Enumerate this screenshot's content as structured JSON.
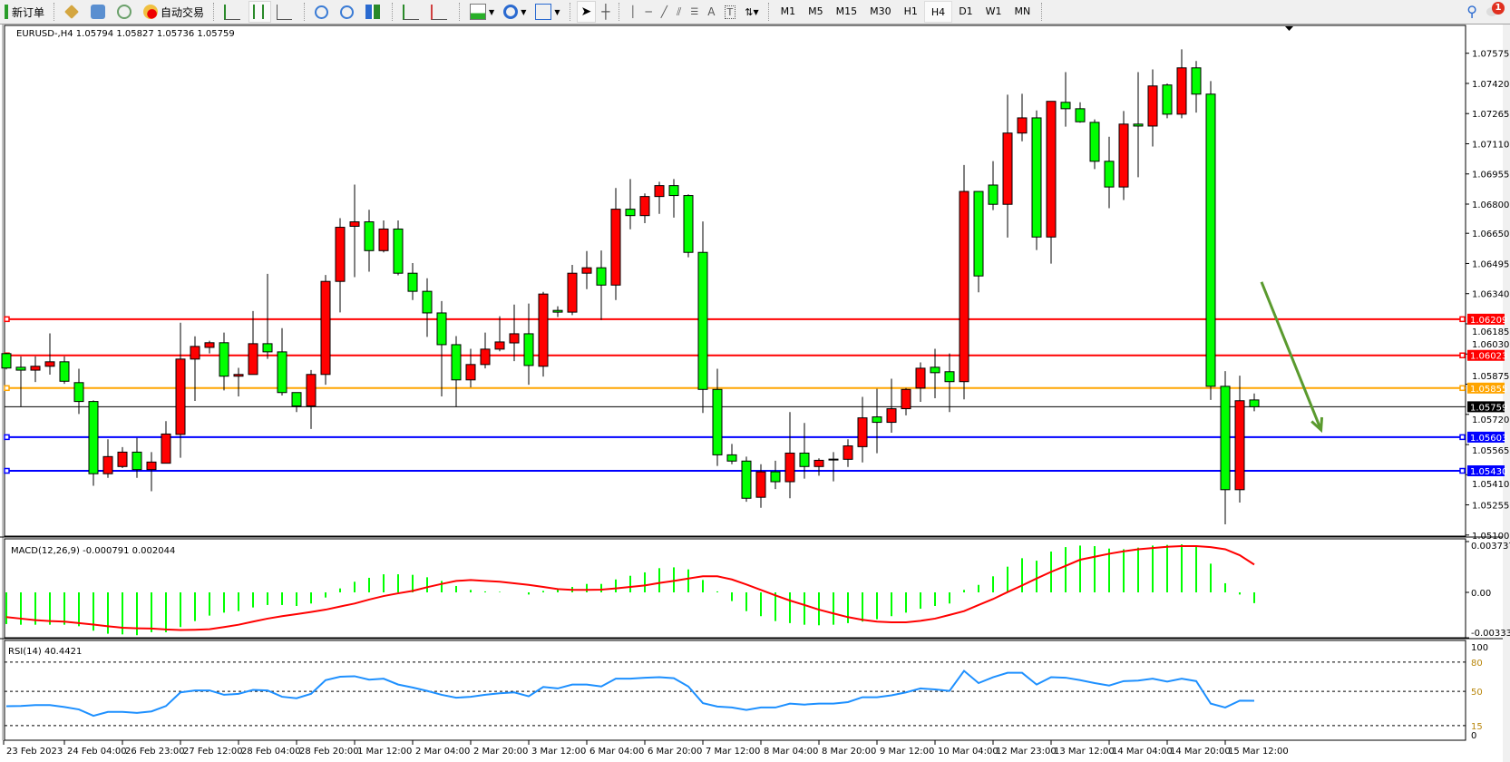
{
  "toolbar": {
    "new_order": "新订单",
    "auto_trading": "自动交易",
    "timeframes": [
      "M1",
      "M5",
      "M15",
      "M30",
      "H1",
      "H4",
      "D1",
      "W1",
      "MN"
    ],
    "active_timeframe": "H4",
    "text_tool": "A",
    "label_tool": "T",
    "notification_count": "1"
  },
  "chart": {
    "header": "EURUSD-,H4  1.05794 1.05827 1.05736 1.05759",
    "colors": {
      "bull": "#ff0000",
      "bear": "#00ff00",
      "grid_text": "#000000",
      "arrow": "#5a9a2e"
    },
    "price_ticks": [
      "1.07575",
      "1.07420",
      "1.07265",
      "1.07110",
      "1.06955",
      "1.06800",
      "1.06650",
      "1.06495",
      "1.06340",
      "1.06185",
      "1.06030",
      "1.05875",
      "1.05720",
      "1.05565",
      "1.05410",
      "1.05255",
      "1.05100"
    ],
    "levels": [
      {
        "price": 1.06209,
        "label": "1.06209",
        "color": "#ff0000"
      },
      {
        "price": 1.06023,
        "label": "1.06023",
        "color": "#ff0000"
      },
      {
        "price": 1.05855,
        "label": "1.05855",
        "color": "#ffa500"
      },
      {
        "price": 1.05603,
        "label": "1.05603",
        "color": "#0000ff"
      },
      {
        "price": 1.0543,
        "label": "1.05430",
        "color": "#0000ff"
      }
    ],
    "bid": {
      "price": 1.05759,
      "label": "1.05759"
    },
    "date_labels": [
      "23 Feb 2023",
      "24 Feb 04:00",
      "26 Feb 23:00",
      "27 Feb 12:00",
      "28 Feb 04:00",
      "28 Feb 20:00",
      "1 Mar 12:00",
      "2 Mar 04:00",
      "2 Mar 20:00",
      "3 Mar 12:00",
      "6 Mar 04:00",
      "6 Mar 20:00",
      "7 Mar 12:00",
      "8 Mar 04:00",
      "8 Mar 20:00",
      "9 Mar 12:00",
      "10 Mar 04:00",
      "12 Mar 23:00",
      "13 Mar 12:00",
      "14 Mar 04:00",
      "14 Mar 20:00",
      "15 Mar 12:00"
    ],
    "arrow": {
      "from_price": 1.064,
      "to_price": 1.0564,
      "from_bar": 86.5,
      "to_bar": 90.6
    }
  },
  "macd": {
    "header": "MACD(12,26,9) -0.000791 0.002044",
    "axis_labels": [
      "0.003737",
      "0.00",
      "-0.003337"
    ],
    "range": [
      -0.003337,
      0.003737
    ],
    "histogram_color": "#00ff00",
    "signal_color": "#ff0000"
  },
  "rsi": {
    "header": "RSI(14) 40.4421",
    "axis_labels": [
      "100",
      "80",
      "50",
      "15",
      "0"
    ],
    "levels": [
      80,
      50,
      15
    ],
    "line_color": "#1e90ff"
  },
  "chart_data": {
    "type": "candlestick",
    "symbol": "EURUSD-",
    "timeframe": "H4",
    "ylim": [
      1.051,
      1.07575
    ],
    "ohlc": [
      [
        1.06032,
        1.06036,
        1.05951,
        1.05958
      ],
      [
        1.05962,
        1.06018,
        1.0576,
        1.05947
      ],
      [
        1.05947,
        1.06018,
        1.05886,
        1.05967
      ],
      [
        1.05967,
        1.06136,
        1.05924,
        1.0599
      ],
      [
        1.0599,
        1.06018,
        1.05877,
        1.0589
      ],
      [
        1.05883,
        1.05954,
        1.05722,
        1.05786
      ],
      [
        1.05786,
        1.05792,
        1.05353,
        1.05415
      ],
      [
        1.05415,
        1.05592,
        1.05394,
        1.05503
      ],
      [
        1.05452,
        1.05552,
        1.05444,
        1.05526
      ],
      [
        1.05526,
        1.05599,
        1.05394,
        1.05436
      ],
      [
        1.05436,
        1.05526,
        1.05325,
        1.05475
      ],
      [
        1.05469,
        1.05685,
        1.05469,
        1.05619
      ],
      [
        1.05617,
        1.06191,
        1.05497,
        1.06004
      ],
      [
        1.06004,
        1.06121,
        1.05789,
        1.06069
      ],
      [
        1.06064,
        1.06098,
        1.06033,
        1.06088
      ],
      [
        1.06088,
        1.0614,
        1.05843,
        1.05916
      ],
      [
        1.05916,
        1.05959,
        1.05812,
        1.05925
      ],
      [
        1.05925,
        1.06251,
        1.05925,
        1.06083
      ],
      [
        1.06083,
        1.06442,
        1.06005,
        1.06041
      ],
      [
        1.06041,
        1.06163,
        1.05817,
        1.05832
      ],
      [
        1.05832,
        1.05832,
        1.05732,
        1.05763
      ],
      [
        1.05763,
        1.05948,
        1.05645,
        1.05925
      ],
      [
        1.05925,
        1.06436,
        1.05872,
        1.06403
      ],
      [
        1.06403,
        1.06728,
        1.06244,
        1.06681
      ],
      [
        1.06686,
        1.069,
        1.06425,
        1.06709
      ],
      [
        1.06709,
        1.06771,
        1.06453,
        1.06561
      ],
      [
        1.06561,
        1.06716,
        1.06552,
        1.06672
      ],
      [
        1.06672,
        1.06716,
        1.06434,
        1.06445
      ],
      [
        1.06445,
        1.06497,
        1.06307,
        1.06352
      ],
      [
        1.06352,
        1.06419,
        1.06118,
        1.06241
      ],
      [
        1.06241,
        1.06302,
        1.05812,
        1.06078
      ],
      [
        1.06078,
        1.06122,
        1.0576,
        1.05897
      ],
      [
        1.05897,
        1.06057,
        1.05859,
        1.05976
      ],
      [
        1.05976,
        1.0614,
        1.05956,
        1.06055
      ],
      [
        1.06055,
        1.06224,
        1.06044,
        1.06092
      ],
      [
        1.06087,
        1.06284,
        1.05993,
        1.06134
      ],
      [
        1.06134,
        1.06289,
        1.05872,
        1.05971
      ],
      [
        1.05967,
        1.06349,
        1.05914,
        1.06338
      ],
      [
        1.06254,
        1.06275,
        1.0622,
        1.06245
      ],
      [
        1.06245,
        1.06488,
        1.0623,
        1.06445
      ],
      [
        1.06445,
        1.06559,
        1.06363,
        1.06473
      ],
      [
        1.06473,
        1.06562,
        1.06205,
        1.06384
      ],
      [
        1.06384,
        1.06883,
        1.06307,
        1.06774
      ],
      [
        1.06774,
        1.06929,
        1.06671,
        1.06741
      ],
      [
        1.06741,
        1.06855,
        1.06702,
        1.06839
      ],
      [
        1.06839,
        1.06915,
        1.0675,
        1.06895
      ],
      [
        1.06895,
        1.06929,
        1.06731,
        1.06844
      ],
      [
        1.06844,
        1.0685,
        1.06527,
        1.06552
      ],
      [
        1.06552,
        1.06711,
        1.05727,
        1.05848
      ],
      [
        1.05848,
        1.05954,
        1.05455,
        1.05512
      ],
      [
        1.05512,
        1.05568,
        1.05464,
        1.0548
      ],
      [
        1.0548,
        1.05503,
        1.05271,
        1.05289
      ],
      [
        1.05294,
        1.05464,
        1.0524,
        1.05425
      ],
      [
        1.05425,
        1.05482,
        1.05336,
        1.05374
      ],
      [
        1.05374,
        1.05732,
        1.05289,
        1.05521
      ],
      [
        1.05521,
        1.05676,
        1.0539,
        1.05452
      ],
      [
        1.05452,
        1.05494,
        1.05405,
        1.05484
      ],
      [
        1.05487,
        1.05526,
        1.05376,
        1.0549
      ],
      [
        1.05489,
        1.05592,
        1.0545,
        1.05558
      ],
      [
        1.05554,
        1.0581,
        1.05473,
        1.05702
      ],
      [
        1.05707,
        1.05851,
        1.0552,
        1.05679
      ],
      [
        1.05679,
        1.05903,
        1.05626,
        1.05749
      ],
      [
        1.05749,
        1.05855,
        1.05715,
        1.05848
      ],
      [
        1.05855,
        1.05987,
        1.05784,
        1.05957
      ],
      [
        1.05962,
        1.06057,
        1.05803,
        1.05934
      ],
      [
        1.05939,
        1.06033,
        1.05732,
        1.05888
      ],
      [
        1.05888,
        1.07001,
        1.05797,
        1.06865
      ],
      [
        1.06865,
        1.06865,
        1.06347,
        1.06431
      ],
      [
        1.06898,
        1.07021,
        1.06769,
        1.06799
      ],
      [
        1.06799,
        1.07362,
        1.06628,
        1.07165
      ],
      [
        1.07165,
        1.07367,
        1.07123,
        1.07243
      ],
      [
        1.07243,
        1.07281,
        1.06564,
        1.06631
      ],
      [
        1.06631,
        1.07328,
        1.06494,
        1.07328
      ],
      [
        1.07323,
        1.07478,
        1.07198,
        1.0729
      ],
      [
        1.0729,
        1.07323,
        1.07218,
        1.07223
      ],
      [
        1.0722,
        1.07235,
        1.0698,
        1.0702
      ],
      [
        1.0702,
        1.07146,
        1.06779,
        1.06888
      ],
      [
        1.06888,
        1.07278,
        1.06821,
        1.07211
      ],
      [
        1.07211,
        1.07478,
        1.06938,
        1.07201
      ],
      [
        1.07201,
        1.07492,
        1.07096,
        1.07407
      ],
      [
        1.07412,
        1.0742,
        1.07241,
        1.07262
      ],
      [
        1.07262,
        1.07595,
        1.07241,
        1.075
      ],
      [
        1.075,
        1.07535,
        1.0727,
        1.07365
      ],
      [
        1.07365,
        1.07432,
        1.05794,
        1.05864
      ],
      [
        1.05864,
        1.05942,
        1.05155,
        1.05333
      ],
      [
        1.05333,
        1.05919,
        1.05267,
        1.0579
      ],
      [
        1.05794,
        1.05827,
        1.05736,
        1.05759
      ]
    ],
    "macd_histogram": [
      -0.00233,
      -0.00238,
      -0.00238,
      -0.00238,
      -0.00238,
      -0.00249,
      -0.00282,
      -0.00304,
      -0.00309,
      -0.00315,
      -0.00293,
      -0.00293,
      -0.00255,
      -0.00211,
      -0.00171,
      -0.00149,
      -0.00138,
      -0.00111,
      -0.00093,
      -0.00093,
      -0.001,
      -0.00082,
      -0.00038,
      0.00029,
      0.00078,
      0.00107,
      0.00133,
      0.00133,
      0.00129,
      0.00111,
      0.00084,
      0.00047,
      0.00018,
      7e-05,
      4e-05,
      0.0,
      -0.00016,
      0.00011,
      0.00022,
      0.0004,
      0.00062,
      0.00062,
      0.00095,
      0.00122,
      0.00147,
      0.00178,
      0.00184,
      0.00169,
      0.00091,
      7e-05,
      -0.00064,
      -0.00138,
      -0.00175,
      -0.00211,
      -0.00226,
      -0.00238,
      -0.00242,
      -0.00238,
      -0.00226,
      -0.00215,
      -0.00198,
      -0.00175,
      -0.00149,
      -0.0012,
      -0.001,
      -0.00082,
      0.00018,
      0.00055,
      0.00118,
      0.00189,
      0.00251,
      0.00233,
      0.003,
      0.00333,
      0.00344,
      0.0034,
      0.00322,
      0.00317,
      0.00329,
      0.00344,
      0.00349,
      0.00353,
      0.0034,
      0.00211,
      0.00067,
      -0.00016,
      -0.000791
    ],
    "macd_signal": [
      -0.00182,
      -0.00193,
      -0.00204,
      -0.00211,
      -0.00215,
      -0.00226,
      -0.00237,
      -0.00249,
      -0.0026,
      -0.00264,
      -0.00266,
      -0.00273,
      -0.00277,
      -0.00275,
      -0.00271,
      -0.00255,
      -0.00238,
      -0.00215,
      -0.00193,
      -0.00175,
      -0.0016,
      -0.00144,
      -0.00127,
      -0.00104,
      -0.00082,
      -0.00053,
      -0.00027,
      -7e-05,
      0.00011,
      0.00038,
      0.00062,
      0.00084,
      0.00091,
      0.00084,
      0.00078,
      0.00067,
      0.00055,
      0.0004,
      0.00024,
      0.00018,
      0.00018,
      0.0002,
      0.00029,
      0.0004,
      0.00051,
      0.00069,
      0.00084,
      0.00102,
      0.00118,
      0.00118,
      0.00095,
      0.00058,
      0.00018,
      -0.00022,
      -0.0006,
      -0.00093,
      -0.00127,
      -0.00155,
      -0.00182,
      -0.00202,
      -0.00215,
      -0.0022,
      -0.0022,
      -0.00209,
      -0.00193,
      -0.00166,
      -0.00138,
      -0.00093,
      -0.00049,
      2e-05,
      0.00051,
      0.00102,
      0.00151,
      0.00195,
      0.0024,
      0.00262,
      0.00284,
      0.00302,
      0.00317,
      0.00326,
      0.00335,
      0.0034,
      0.0034,
      0.00333,
      0.00317,
      0.00273,
      0.002044
    ],
    "rsi": [
      34.8,
      35,
      36,
      36,
      34,
      31.5,
      25,
      29,
      29,
      28,
      29.5,
      35,
      49,
      51,
      51,
      46.5,
      47.5,
      51.5,
      51,
      44.5,
      43,
      47.5,
      61.5,
      65,
      65.5,
      62,
      63,
      57,
      54,
      50.5,
      46.5,
      43.5,
      44.5,
      46.5,
      48,
      49,
      45,
      54.5,
      53,
      57,
      57,
      55,
      63,
      63,
      64,
      64.5,
      63.5,
      55,
      38,
      34.5,
      33.5,
      31,
      33.5,
      33.5,
      37.5,
      36.5,
      37.5,
      37.5,
      39,
      44,
      44,
      46,
      49,
      53,
      52,
      50.5,
      71,
      58.5,
      64.5,
      69,
      69,
      57,
      64.5,
      64,
      61.5,
      58.5,
      56,
      60.5,
      61,
      63,
      60,
      63,
      60.5,
      37.5,
      33.5,
      40.5,
      40.4421
    ]
  }
}
